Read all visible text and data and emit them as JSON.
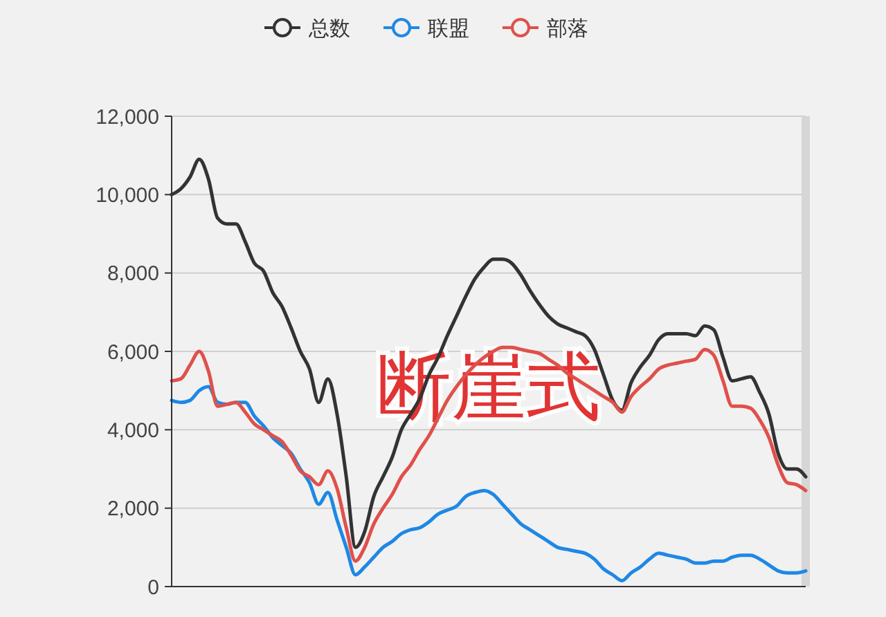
{
  "chart_data": {
    "type": "line",
    "categories": [
      null,
      null,
      null,
      null,
      null,
      null,
      null,
      null,
      null,
      null,
      null,
      null,
      null,
      null,
      null,
      null,
      null,
      null,
      null,
      null,
      null,
      null,
      null,
      null,
      null,
      null,
      null,
      null,
      null,
      null,
      null,
      null,
      null,
      null,
      null,
      null,
      null,
      null,
      null,
      null,
      null,
      null,
      null,
      null,
      null,
      null,
      null,
      null,
      null,
      null,
      null,
      null,
      null,
      null,
      null,
      null,
      null,
      null,
      null,
      null,
      null,
      null,
      null,
      null,
      null,
      null,
      null,
      null,
      null,
      null
    ],
    "series": [
      {
        "name": "总数",
        "color": "#333333",
        "values": [
          10000,
          10150,
          10450,
          10900,
          10400,
          9400,
          9250,
          9250,
          8800,
          8250,
          8050,
          7500,
          7150,
          6600,
          6000,
          5550,
          4700,
          5300,
          4400,
          2800,
          1000,
          1400,
          2300,
          2800,
          3300,
          4000,
          4400,
          4800,
          5400,
          5850,
          6400,
          6900,
          7400,
          7850,
          8150,
          8350,
          8350,
          8250,
          7950,
          7550,
          7200,
          6900,
          6700,
          6600,
          6500,
          6400,
          6050,
          5400,
          4750,
          4500,
          5200,
          5600,
          5900,
          6300,
          6450,
          6450,
          6450,
          6400,
          6650,
          6550,
          5850,
          5250,
          5300,
          5350,
          4950,
          4400,
          3400,
          3000,
          3000,
          2800
        ]
      },
      {
        "name": "联盟",
        "color": "#1e88e5",
        "values": [
          4750,
          4700,
          4750,
          5000,
          5100,
          4700,
          4650,
          4700,
          4700,
          4350,
          4100,
          3800,
          3600,
          3400,
          3000,
          2650,
          2100,
          2400,
          1700,
          1000,
          300,
          500,
          750,
          1000,
          1150,
          1350,
          1450,
          1500,
          1650,
          1850,
          1950,
          2050,
          2300,
          2400,
          2450,
          2350,
          2100,
          1850,
          1600,
          1450,
          1300,
          1150,
          1000,
          950,
          900,
          850,
          700,
          450,
          300,
          150,
          350,
          500,
          700,
          850,
          800,
          750,
          700,
          600,
          600,
          650,
          650,
          750,
          800,
          800,
          700,
          550,
          400,
          350,
          350,
          400
        ]
      },
      {
        "name": "部落",
        "color": "#e0504a",
        "values": [
          5250,
          5300,
          5650,
          6000,
          5500,
          4600,
          4650,
          4700,
          4450,
          4150,
          4000,
          3850,
          3700,
          3350,
          2950,
          2800,
          2600,
          2950,
          2500,
          1500,
          650,
          1000,
          1600,
          2000,
          2350,
          2800,
          3100,
          3500,
          3850,
          4300,
          4750,
          5100,
          5400,
          5650,
          5850,
          6000,
          6100,
          6100,
          6050,
          6000,
          5950,
          5800,
          5650,
          5450,
          5300,
          5150,
          5000,
          4850,
          4700,
          4450,
          4850,
          5100,
          5300,
          5550,
          5650,
          5700,
          5750,
          5800,
          6050,
          5900,
          5250,
          4600,
          4600,
          4550,
          4250,
          3800,
          3100,
          2650,
          2600,
          2450
        ]
      }
    ],
    "ylim": [
      0,
      12000
    ],
    "yticks": [
      {
        "value": 0,
        "label": "0"
      },
      {
        "value": 2000,
        "label": "2,000"
      },
      {
        "value": 4000,
        "label": "4,000"
      },
      {
        "value": 6000,
        "label": "6,000"
      },
      {
        "value": 8000,
        "label": "8,000"
      },
      {
        "value": 10000,
        "label": "10,000"
      },
      {
        "value": 12000,
        "label": "12,000"
      }
    ],
    "grid": "y",
    "legend": "top",
    "annotations": [
      "断崖式"
    ]
  }
}
